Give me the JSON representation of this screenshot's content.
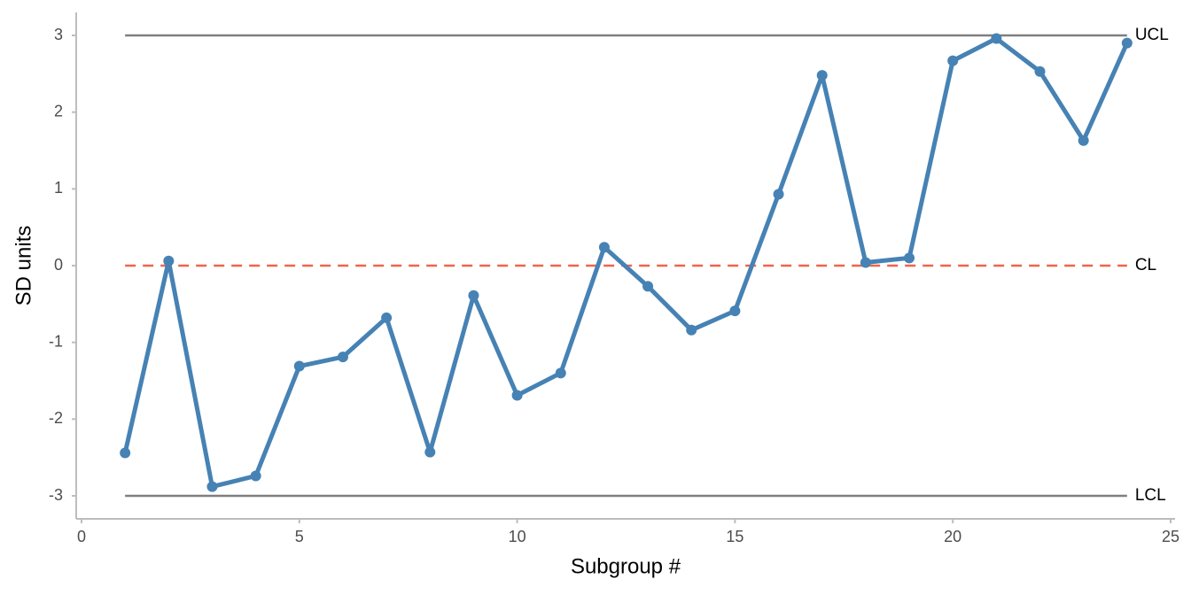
{
  "chart_data": {
    "type": "line",
    "x_label": "Subgroup #",
    "y_label": "SD units",
    "x": [
      1,
      2,
      3,
      4,
      5,
      6,
      7,
      8,
      9,
      10,
      11,
      12,
      13,
      14,
      15,
      16,
      17,
      18,
      19,
      20,
      21,
      22,
      23,
      24
    ],
    "series": [
      {
        "color": "#4682b4",
        "values": [
          -2.44,
          0.06,
          -2.88,
          -2.74,
          -1.31,
          -1.19,
          -0.68,
          -2.43,
          -0.39,
          -1.69,
          -1.4,
          0.24,
          -0.27,
          -0.84,
          -0.59,
          0.93,
          2.48,
          0.04,
          0.1,
          2.67,
          2.96,
          2.53,
          1.63,
          2.9
        ]
      }
    ],
    "limits": [
      {
        "label": "UCL",
        "value": 3,
        "color": "#7f7f7f",
        "dashed": false
      },
      {
        "label": "CL",
        "value": 0,
        "color": "#f0644a",
        "dashed": true
      },
      {
        "label": "LCL",
        "value": -3,
        "color": "#7f7f7f",
        "dashed": false
      }
    ],
    "xlim": [
      0,
      25
    ],
    "xticks": [
      0,
      5,
      10,
      15,
      20,
      25
    ],
    "ylim": [
      -3,
      3
    ],
    "yticks": [
      -3,
      -2,
      -1,
      0,
      1,
      2,
      3
    ],
    "grid": false
  }
}
